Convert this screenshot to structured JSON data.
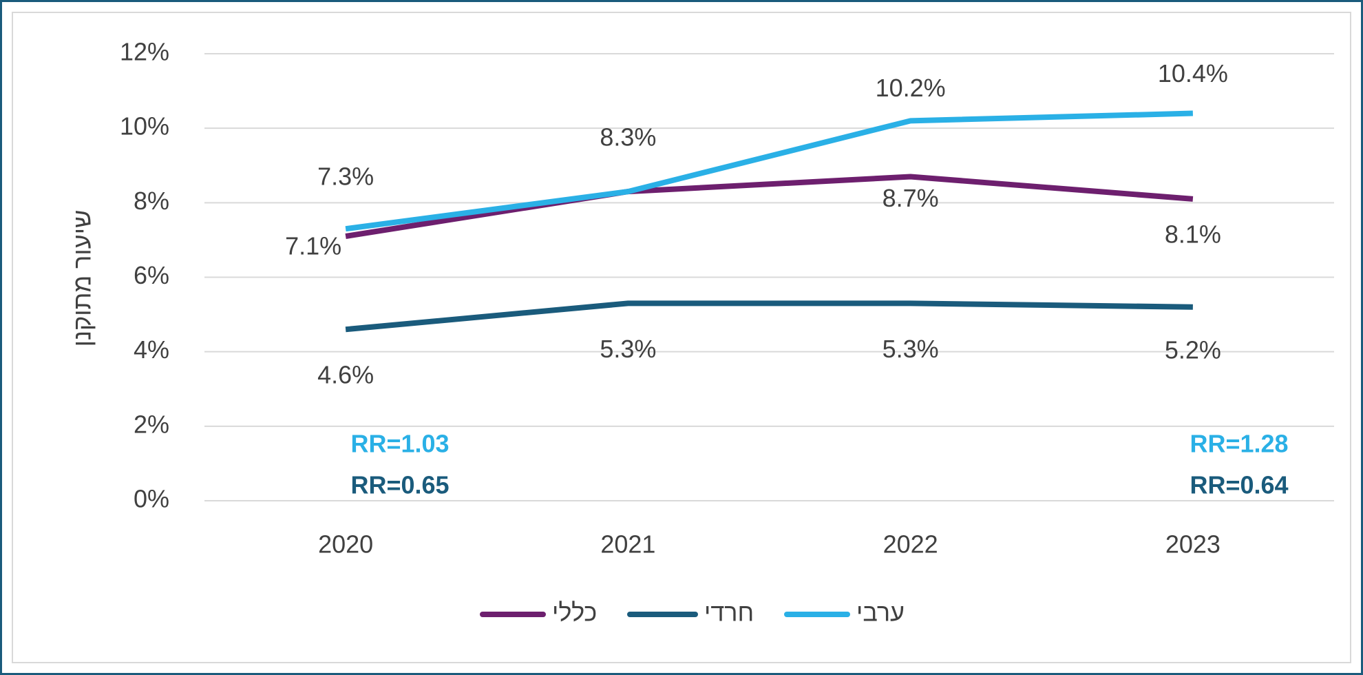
{
  "chart_data": {
    "type": "line",
    "y_label": "שיעור מתוקנן",
    "categories": [
      "2020",
      "2021",
      "2022",
      "2023"
    ],
    "series": [
      {
        "name": "כללי",
        "color": "#6d1f6e",
        "values": [
          7.1,
          8.3,
          8.7,
          8.1
        ],
        "value_labels": [
          "7.1%",
          null,
          "8.7%",
          "8.1%"
        ]
      },
      {
        "name": "חרדי",
        "color": "#1a5b7c",
        "values": [
          4.6,
          5.3,
          5.3,
          5.2
        ],
        "value_labels": [
          "4.6%",
          "5.3%",
          "5.3%",
          "5.2%"
        ]
      },
      {
        "name": "ערבי",
        "color": "#2ab0e6",
        "values": [
          7.3,
          8.3,
          10.2,
          10.4
        ],
        "value_labels": [
          "7.3%",
          "8.3%",
          "10.2%",
          "10.4%"
        ]
      }
    ],
    "ylim": [
      0,
      12
    ],
    "yticks": [
      {
        "value": 0,
        "label": "0%"
      },
      {
        "value": 2,
        "label": "2%"
      },
      {
        "value": 4,
        "label": "4%"
      },
      {
        "value": 6,
        "label": "6%"
      },
      {
        "value": 8,
        "label": "8%"
      },
      {
        "value": 10,
        "label": "10%"
      },
      {
        "value": 12,
        "label": "12%"
      }
    ],
    "grid": true,
    "legend": "bottom",
    "annotations": [
      {
        "text": "RR=1.03",
        "color": "#2ab0e6"
      },
      {
        "text": "RR=0.65",
        "color": "#1a5b7c"
      },
      {
        "text": "RR=1.28",
        "color": "#2ab0e6"
      },
      {
        "text": "RR=0.64",
        "color": "#1a5b7c"
      }
    ]
  }
}
